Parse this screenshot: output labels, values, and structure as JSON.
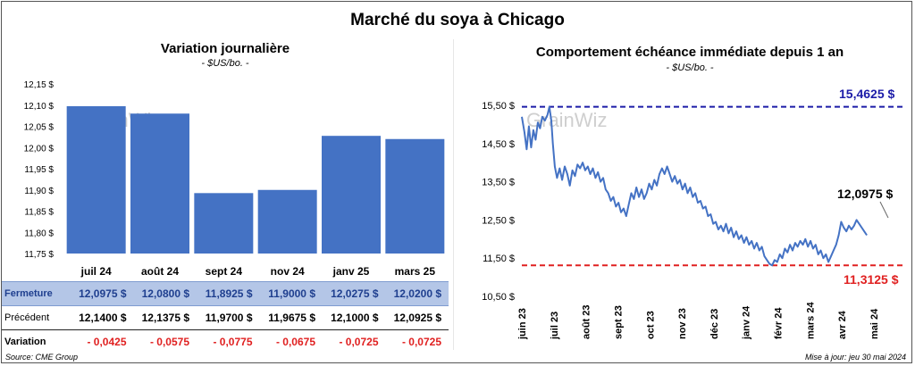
{
  "title": "Marché du soya à Chicago",
  "left": {
    "title": "Variation  journalière",
    "subtitle": "- $US/bo. -",
    "watermark": "GrainWiz"
  },
  "right": {
    "title": "Comportement  échéance immédiate depuis 1 an",
    "subtitle": "- $US/bo. -",
    "watermark": "GrainWiz",
    "max_label": "15,4625 $",
    "min_label": "11,3125 $",
    "last_label": "12,0975 $"
  },
  "table": {
    "rows": [
      {
        "label": "Fermeture",
        "values": [
          "12,0975  $",
          "12,0800  $",
          "11,8925  $",
          "11,9000  $",
          "12,0275  $",
          "12,0200  $"
        ]
      },
      {
        "label": "Précédent",
        "values": [
          "12,1400  $",
          "12,1375  $",
          "11,9700  $",
          "11,9675  $",
          "12,1000  $",
          "12,0925  $"
        ]
      },
      {
        "label": "Variation",
        "values": [
          "- 0,0425",
          "- 0,0575",
          "- 0,0775",
          "- 0,0675",
          "- 0,0725",
          "- 0,0725"
        ]
      }
    ]
  },
  "footer": {
    "source": "Source: CME Group",
    "updated": "Mise à jour: jeu 30 mai 2024"
  },
  "colors": {
    "bar": "#4472c4",
    "line": "#4472c4",
    "max_line": "#1c1ca8",
    "min_line": "#e02020"
  },
  "chart_data": [
    {
      "type": "bar",
      "title": "Variation  journalière",
      "subtitle": "- $US/bo. -",
      "categories": [
        "juil 24",
        "août 24",
        "sept 24",
        "nov 24",
        "janv 25",
        "mars 25"
      ],
      "values": [
        12.0975,
        12.08,
        11.8925,
        11.9,
        12.0275,
        12.02
      ],
      "ylim": [
        11.75,
        12.15
      ],
      "ytick_step": 0.05,
      "ytick_labels": [
        "11,75 $",
        "11,80 $",
        "11,85 $",
        "11,90 $",
        "11,95 $",
        "12,00 $",
        "12,05 $",
        "12,10 $",
        "12,15 $"
      ],
      "grid": false,
      "legend": "none"
    },
    {
      "type": "line",
      "title": "Comportement  échéance immédiate depuis 1 an",
      "subtitle": "- $US/bo. -",
      "x_labels": [
        "juin 23",
        "juil 23",
        "août 23",
        "sept 23",
        "oct 23",
        "nov 23",
        "déc 23",
        "janv 24",
        "févr 24",
        "mars 24",
        "avr 24",
        "mai 24"
      ],
      "x_months": [
        0,
        1,
        2,
        3,
        4,
        5,
        6,
        7,
        8,
        9,
        10,
        11
      ],
      "x_range": [
        0,
        11.95
      ],
      "ylim": [
        10.5,
        15.5
      ],
      "ytick_labels": [
        "10,50 $",
        "11,50 $",
        "12,50 $",
        "13,50 $",
        "14,50 $",
        "15,50 $"
      ],
      "ytick_values": [
        10.5,
        11.5,
        12.5,
        13.5,
        14.5,
        15.5
      ],
      "reference_lines": [
        {
          "value": 15.4625,
          "label": "15,4625 $",
          "style": "dashed",
          "color": "#1c1ca8"
        },
        {
          "value": 11.3125,
          "label": "11,3125 $",
          "style": "dashed",
          "color": "#e02020"
        }
      ],
      "last_value": 12.0975,
      "points": [
        [
          0.0,
          15.2
        ],
        [
          0.08,
          14.8
        ],
        [
          0.15,
          14.35
        ],
        [
          0.22,
          14.95
        ],
        [
          0.29,
          14.4
        ],
        [
          0.36,
          14.85
        ],
        [
          0.43,
          14.6
        ],
        [
          0.5,
          15.05
        ],
        [
          0.57,
          14.9
        ],
        [
          0.64,
          15.2
        ],
        [
          0.72,
          15.1
        ],
        [
          0.8,
          15.25
        ],
        [
          0.86,
          15.46
        ],
        [
          0.92,
          15.1
        ],
        [
          0.97,
          14.5
        ],
        [
          1.03,
          13.9
        ],
        [
          1.1,
          13.6
        ],
        [
          1.18,
          13.85
        ],
        [
          1.26,
          13.55
        ],
        [
          1.34,
          13.9
        ],
        [
          1.42,
          13.7
        ],
        [
          1.5,
          13.4
        ],
        [
          1.58,
          13.8
        ],
        [
          1.66,
          13.65
        ],
        [
          1.74,
          13.95
        ],
        [
          1.82,
          13.85
        ],
        [
          1.9,
          14.0
        ],
        [
          1.98,
          13.8
        ],
        [
          2.06,
          13.9
        ],
        [
          2.14,
          13.7
        ],
        [
          2.22,
          13.85
        ],
        [
          2.3,
          13.6
        ],
        [
          2.38,
          13.75
        ],
        [
          2.46,
          13.5
        ],
        [
          2.54,
          13.6
        ],
        [
          2.62,
          13.3
        ],
        [
          2.7,
          13.2
        ],
        [
          2.78,
          13.0
        ],
        [
          2.86,
          13.1
        ],
        [
          2.94,
          12.85
        ],
        [
          3.02,
          12.95
        ],
        [
          3.1,
          12.7
        ],
        [
          3.18,
          12.8
        ],
        [
          3.26,
          12.6
        ],
        [
          3.34,
          12.9
        ],
        [
          3.42,
          13.2
        ],
        [
          3.5,
          13.05
        ],
        [
          3.58,
          13.35
        ],
        [
          3.66,
          13.1
        ],
        [
          3.74,
          13.3
        ],
        [
          3.82,
          13.05
        ],
        [
          3.9,
          13.2
        ],
        [
          3.98,
          13.45
        ],
        [
          4.06,
          13.3
        ],
        [
          4.14,
          13.55
        ],
        [
          4.22,
          13.4
        ],
        [
          4.3,
          13.7
        ],
        [
          4.38,
          13.85
        ],
        [
          4.46,
          13.7
        ],
        [
          4.54,
          13.9
        ],
        [
          4.62,
          13.7
        ],
        [
          4.7,
          13.5
        ],
        [
          4.78,
          13.65
        ],
        [
          4.86,
          13.45
        ],
        [
          4.94,
          13.55
        ],
        [
          5.02,
          13.3
        ],
        [
          5.1,
          13.45
        ],
        [
          5.18,
          13.2
        ],
        [
          5.26,
          13.35
        ],
        [
          5.34,
          13.1
        ],
        [
          5.42,
          13.2
        ],
        [
          5.5,
          12.95
        ],
        [
          5.58,
          13.0
        ],
        [
          5.66,
          12.8
        ],
        [
          5.74,
          12.85
        ],
        [
          5.82,
          12.6
        ],
        [
          5.9,
          12.65
        ],
        [
          5.98,
          12.4
        ],
        [
          6.06,
          12.45
        ],
        [
          6.14,
          12.25
        ],
        [
          6.22,
          12.35
        ],
        [
          6.3,
          12.2
        ],
        [
          6.38,
          12.4
        ],
        [
          6.46,
          12.15
        ],
        [
          6.54,
          12.3
        ],
        [
          6.62,
          12.05
        ],
        [
          6.7,
          12.2
        ],
        [
          6.78,
          12.0
        ],
        [
          6.86,
          12.1
        ],
        [
          6.94,
          11.9
        ],
        [
          7.02,
          12.05
        ],
        [
          7.1,
          11.85
        ],
        [
          7.18,
          11.95
        ],
        [
          7.26,
          11.75
        ],
        [
          7.34,
          11.9
        ],
        [
          7.42,
          11.7
        ],
        [
          7.5,
          11.8
        ],
        [
          7.58,
          11.55
        ],
        [
          7.66,
          11.45
        ],
        [
          7.74,
          11.35
        ],
        [
          7.82,
          11.31
        ],
        [
          7.9,
          11.45
        ],
        [
          7.98,
          11.4
        ],
        [
          8.06,
          11.6
        ],
        [
          8.14,
          11.5
        ],
        [
          8.22,
          11.75
        ],
        [
          8.3,
          11.65
        ],
        [
          8.38,
          11.85
        ],
        [
          8.46,
          11.7
        ],
        [
          8.54,
          11.9
        ],
        [
          8.62,
          11.8
        ],
        [
          8.7,
          11.95
        ],
        [
          8.78,
          11.85
        ],
        [
          8.86,
          12.0
        ],
        [
          8.94,
          11.8
        ],
        [
          9.02,
          11.95
        ],
        [
          9.1,
          11.75
        ],
        [
          9.18,
          11.85
        ],
        [
          9.26,
          11.6
        ],
        [
          9.34,
          11.7
        ],
        [
          9.42,
          11.5
        ],
        [
          9.5,
          11.6
        ],
        [
          9.58,
          11.4
        ],
        [
          9.66,
          11.55
        ],
        [
          9.74,
          11.7
        ],
        [
          9.82,
          11.85
        ],
        [
          9.9,
          12.1
        ],
        [
          9.98,
          12.45
        ],
        [
          10.06,
          12.3
        ],
        [
          10.14,
          12.2
        ],
        [
          10.22,
          12.35
        ],
        [
          10.3,
          12.25
        ],
        [
          10.38,
          12.35
        ],
        [
          10.46,
          12.5
        ],
        [
          10.54,
          12.4
        ],
        [
          10.62,
          12.3
        ],
        [
          10.7,
          12.2
        ],
        [
          10.78,
          12.1
        ]
      ],
      "grid": false,
      "legend": "none"
    }
  ]
}
